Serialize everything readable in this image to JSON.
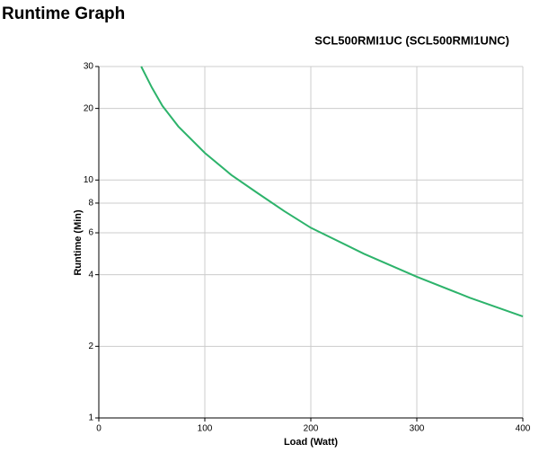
{
  "chart_data": {
    "type": "line",
    "title": "Runtime Graph",
    "subtitle": "SCL500RMI1UC (SCL500RMI1UNC)",
    "x_label": "Load (Watt)",
    "y_label": "Runtime (Min)",
    "x": [
      40,
      50,
      60,
      75,
      100,
      125,
      150,
      175,
      200,
      250,
      300,
      350,
      400
    ],
    "values": [
      30,
      24.5,
      20.5,
      16.8,
      13,
      10.5,
      8.8,
      7.4,
      6.3,
      4.9,
      3.92,
      3.2,
      2.67
    ],
    "color": "#2db36b",
    "title_color": "#5aaf2d",
    "xlim": [
      0,
      400
    ],
    "xticks": [
      0,
      100,
      200,
      300,
      400
    ],
    "ylim": [
      1,
      30
    ],
    "yticks": [
      1,
      2,
      4,
      6,
      8,
      10,
      20,
      30
    ],
    "y_log": true,
    "grid": true
  }
}
